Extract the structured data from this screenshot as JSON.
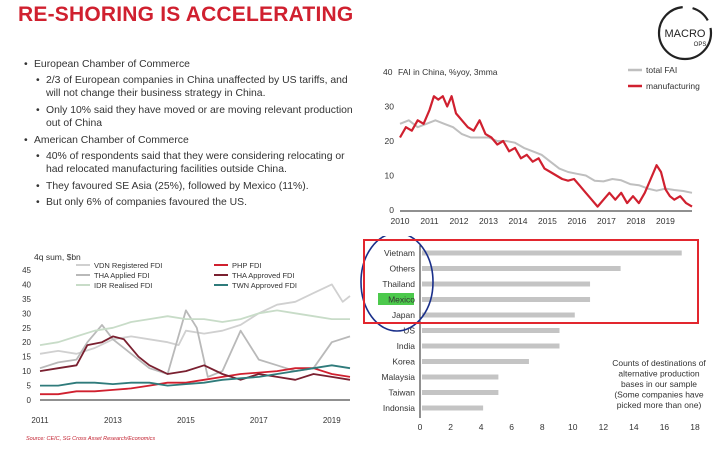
{
  "title": "RE-SHORING IS ACCELERATING",
  "logo": {
    "line1": "MACRO",
    "line2": "OPS"
  },
  "bullets": {
    "eu_header": "European Chamber of Commerce",
    "eu_1": "2/3 of European companies in China unaffected by US tariffs, and will not change their business strategy in China.",
    "eu_2": "Only 10% said they have moved or are moving relevant production out of China",
    "us_header": "American Chamber of Commerce",
    "us_1": "40% of respondents said that they were considering relocating or had relocated manufacturing facilities outside China.",
    "us_2": "They favoured SE Asia (25%), followed by Mexico (11%).",
    "us_3": "But only 6% of companies favoured the US."
  },
  "source": "Source: CEIC, SG Cross Asset Research/Economics",
  "colors": {
    "red": "#d0202f",
    "grey": "#bfbfbf",
    "bar": "#c4c4c4",
    "highlight": "#4cc94c",
    "circle": "#1a2f8a"
  },
  "chart_data": [
    {
      "type": "line",
      "title": "FAI in China, %yoy, 3mma",
      "y_top_label": "40",
      "ylim": [
        0,
        40
      ],
      "xlim": [
        2010,
        2019.9
      ],
      "yticks": [
        "10",
        "20",
        "30"
      ],
      "yzero": "0",
      "xticks": [
        "2010",
        "2011",
        "2012",
        "2013",
        "2014",
        "2015",
        "2016",
        "2017",
        "2018",
        "2019"
      ],
      "legend_position": "top-right",
      "series": [
        {
          "name": "total FAI",
          "color": "#bfbfbf",
          "x": [
            2010,
            2010.3,
            2010.6,
            2010.9,
            2011.2,
            2011.5,
            2011.8,
            2012.1,
            2012.4,
            2012.7,
            2013,
            2013.3,
            2013.6,
            2013.9,
            2014.2,
            2014.5,
            2014.8,
            2015.1,
            2015.4,
            2015.7,
            2016,
            2016.3,
            2016.6,
            2016.9,
            2017.2,
            2017.5,
            2017.8,
            2018.1,
            2018.4,
            2018.7,
            2019,
            2019.3,
            2019.6,
            2019.9
          ],
          "y": [
            25,
            26,
            24,
            25,
            26,
            25,
            24,
            22,
            21,
            21,
            21,
            20,
            20,
            19.5,
            18,
            17,
            16,
            14,
            12,
            11,
            10.5,
            10,
            8.5,
            8.3,
            9,
            8.6,
            7.5,
            7.2,
            6.2,
            5.6,
            6.2,
            5.8,
            5.5,
            5.0
          ]
        },
        {
          "name": "manufacturing",
          "color": "#d0202f",
          "x": [
            2010,
            2010.2,
            2010.4,
            2010.6,
            2010.8,
            2011,
            2011.15,
            2011.3,
            2011.45,
            2011.6,
            2011.75,
            2011.9,
            2012.1,
            2012.3,
            2012.5,
            2012.7,
            2012.9,
            2013.1,
            2013.3,
            2013.5,
            2013.7,
            2013.9,
            2014.1,
            2014.3,
            2014.5,
            2014.7,
            2014.9,
            2015.1,
            2015.3,
            2015.5,
            2015.7,
            2015.9,
            2016.1,
            2016.3,
            2016.5,
            2016.7,
            2016.9,
            2017.1,
            2017.3,
            2017.5,
            2017.7,
            2017.9,
            2018.1,
            2018.3,
            2018.5,
            2018.7,
            2018.85,
            2019,
            2019.15,
            2019.3,
            2019.5,
            2019.7,
            2019.9
          ],
          "y": [
            21,
            24,
            23,
            26,
            25,
            29,
            33,
            32,
            33,
            30,
            33,
            28,
            26,
            24,
            23,
            26,
            22,
            21,
            19,
            20,
            17,
            18,
            15,
            16,
            14,
            15,
            12,
            11,
            10,
            9,
            8.5,
            9,
            7,
            5,
            3,
            1,
            3,
            5,
            3,
            5,
            2,
            4,
            2,
            5,
            9,
            13,
            11,
            6,
            4,
            3,
            4,
            2,
            1
          ]
        }
      ]
    },
    {
      "type": "bar",
      "title": "Counts of destinations of alternative production bases in our sample (Some companies have picked more than one)",
      "annotation": [
        "Counts of destinations of",
        "alternative production",
        "bases in our sample",
        "(Some companies have",
        "picked more than one)"
      ],
      "orientation": "horizontal",
      "categories": [
        "Vietnam",
        "Others",
        "Thailand",
        "Mexico",
        "Japan",
        "US",
        "India",
        "Korea",
        "Malaysia",
        "Taiwan",
        "Indonsia"
      ],
      "values": [
        17,
        13,
        11,
        11,
        10,
        9,
        9,
        7,
        5,
        5,
        4
      ],
      "highlighted": "Mexico",
      "xlim": [
        0,
        18
      ],
      "xticks": [
        "0",
        "2",
        "4",
        "6",
        "8",
        "10",
        "12",
        "14",
        "16",
        "18"
      ]
    },
    {
      "type": "line",
      "ylabel": "4q sum, $bn",
      "ylim": [
        0,
        45
      ],
      "xlim": [
        2011,
        2019.5
      ],
      "yticks": [
        "0",
        "5",
        "10",
        "15",
        "20",
        "25",
        "30",
        "35",
        "40",
        "45"
      ],
      "xticks": [
        "2011",
        "2013",
        "2015",
        "2017",
        "2019"
      ],
      "legend_position": "top",
      "series": [
        {
          "name": "VDN Registered FDI",
          "color": "#d0d0d0",
          "x": [
            2011,
            2011.5,
            2012,
            2012.5,
            2013,
            2013.5,
            2014,
            2014.5,
            2014.8,
            2015,
            2015.5,
            2016,
            2016.5,
            2017,
            2017.5,
            2018,
            2018.5,
            2019,
            2019.3,
            2019.5
          ],
          "y": [
            16,
            17,
            16,
            18,
            21,
            22,
            21,
            20,
            19,
            24,
            23,
            24,
            26,
            30,
            33,
            34,
            37,
            40,
            34,
            36
          ]
        },
        {
          "name": "THA Applied FDI",
          "color": "#b9b9b9",
          "x": [
            2011,
            2011.5,
            2012,
            2012.3,
            2012.7,
            2013,
            2013.5,
            2014,
            2014.5,
            2015,
            2015.3,
            2015.6,
            2016,
            2016.5,
            2017,
            2017.5,
            2018,
            2018.5,
            2019,
            2019.5
          ],
          "y": [
            11,
            13,
            14,
            20,
            26,
            21,
            16,
            11,
            9,
            31,
            25,
            8,
            10,
            24,
            14,
            12,
            10,
            11,
            20,
            22
          ]
        },
        {
          "name": "IDR Realised FDI",
          "color": "#c8dcc8",
          "x": [
            2011,
            2011.5,
            2012,
            2012.5,
            2013,
            2013.5,
            2014,
            2014.5,
            2015,
            2015.5,
            2016,
            2016.5,
            2017,
            2017.5,
            2018,
            2018.5,
            2019,
            2019.5
          ],
          "y": [
            19,
            20,
            22,
            24,
            25,
            27,
            28,
            29,
            28,
            28,
            27,
            28,
            30,
            31,
            30,
            29,
            28,
            28
          ]
        },
        {
          "name": "PHP FDI",
          "color": "#d0202f",
          "x": [
            2011,
            2011.5,
            2012,
            2012.5,
            2013,
            2013.5,
            2014,
            2014.5,
            2015,
            2015.5,
            2016,
            2016.5,
            2017,
            2017.5,
            2018,
            2018.5,
            2019,
            2019.5
          ],
          "y": [
            2,
            2,
            3,
            3,
            3.5,
            4,
            5,
            6,
            6,
            7,
            8,
            9,
            9.5,
            10,
            11,
            11,
            9,
            8
          ]
        },
        {
          "name": "THA Approved FDI",
          "color": "#7a2030",
          "x": [
            2011,
            2011.5,
            2012,
            2012.3,
            2012.7,
            2013,
            2013.3,
            2013.7,
            2014,
            2014.5,
            2015,
            2015.5,
            2016,
            2016.5,
            2017,
            2017.5,
            2018,
            2018.5,
            2019,
            2019.5
          ],
          "y": [
            10,
            11,
            12,
            19,
            20,
            22,
            21,
            15,
            12,
            9,
            10,
            12,
            9,
            7,
            9,
            8,
            7,
            9,
            8,
            7
          ]
        },
        {
          "name": "TWN Approved FDI",
          "color": "#2f7b7b",
          "x": [
            2011,
            2011.5,
            2012,
            2012.5,
            2013,
            2013.5,
            2014,
            2014.5,
            2015,
            2015.5,
            2016,
            2016.5,
            2017,
            2017.5,
            2018,
            2018.5,
            2019,
            2019.5
          ],
          "y": [
            5,
            5,
            6,
            6,
            5.5,
            6,
            6,
            5,
            5.5,
            6,
            7,
            7.5,
            8,
            9,
            10,
            11,
            12,
            11
          ]
        }
      ]
    }
  ]
}
